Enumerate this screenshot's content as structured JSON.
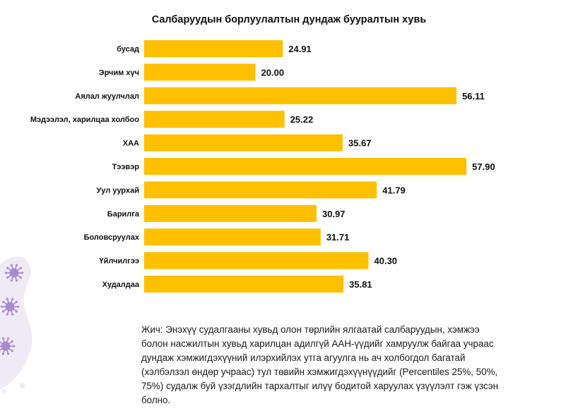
{
  "chart_data": {
    "type": "bar",
    "orientation": "horizontal",
    "title": "Салбаруудын борлуулалтын дундаж бууралтын хувь",
    "categories": [
      "бусад",
      "Эрчим хүч",
      "Аялал жуулчлал",
      "Мэдээлэл, харилцаа холбоо",
      "ХАА",
      "Тээвэр",
      "Уул уурхай",
      "Барилга",
      "Боловсруулах",
      "Үйлчилгээ",
      "Худалдаа"
    ],
    "values": [
      24.91,
      20.0,
      56.11,
      25.22,
      35.67,
      57.9,
      41.79,
      30.97,
      31.71,
      40.3,
      35.81
    ],
    "value_labels": [
      "24.91",
      "20.00",
      "56.11",
      "25.22",
      "35.67",
      "57.90",
      "41.79",
      "30.97",
      "31.71",
      "40.30",
      "35.81"
    ],
    "xlim": [
      0,
      66
    ],
    "bar_color": "#FFC000",
    "grid": false,
    "legend": "none"
  },
  "note": {
    "lines": [
      "Жич: Энэхүү судалгааны хувьд олон төрлийн ялгаатай салбаруудын, хэмжээ",
      "болон насжилтын хувьд харилцан адилгүй ААН-үүдийг хамруулж байгаа учраас",
      "дундаж хэмжигдэхүүний илэрхийлэх утга агуулга нь ач холбогдол багатай",
      "(хэлбэлзэл өндөр учраас) тул төвийн хэмжигдэхүүнүүдийг (Percentiles 25%, 50%,",
      "75%) судалж буй үзэгдлийн тархалтыг илүү бодитой харуулах үзүүлэлт гэж үзсэн",
      "болно."
    ]
  },
  "decoration": {
    "blob_color": "#EEEAF6",
    "virus_color": "#A78BD0",
    "virus_icon": "virus-icon"
  }
}
